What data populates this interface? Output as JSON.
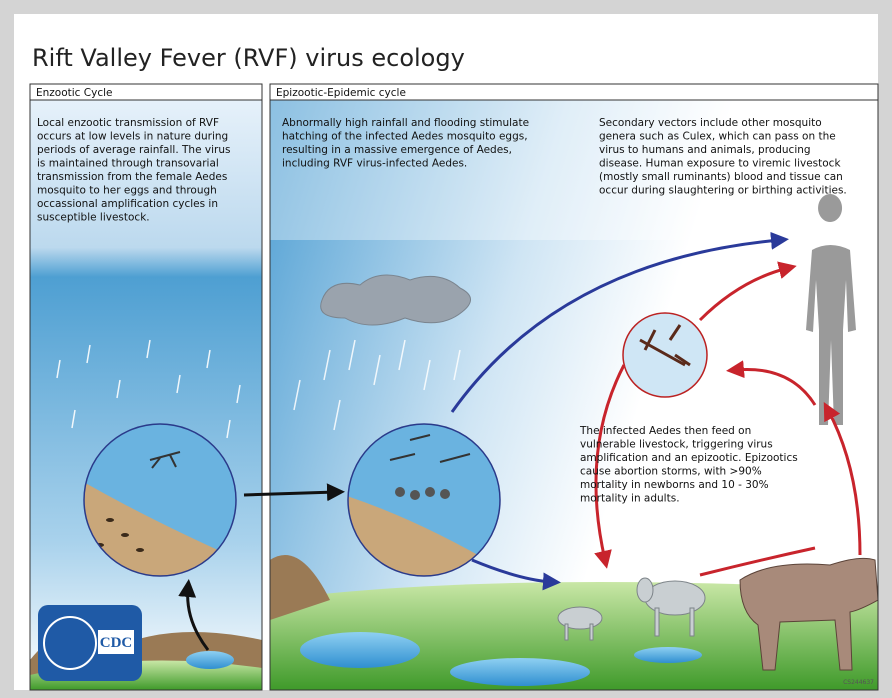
{
  "title": "Rift Valley Fever (RVF) virus ecology",
  "enzootic": {
    "label": "Enzootic Cycle",
    "lines": [
      "Local enzootic transmission of RVF",
      "occurs at low levels in nature during",
      "periods of average rainfall.  The virus",
      "is maintained through transovarial",
      "transmission from the female Aedes",
      "mosquito to her eggs and through",
      "occassional amplification cycles in",
      "susceptible livestock."
    ]
  },
  "epizootic": {
    "label": "Epizootic-Epidemic cycle",
    "flooding": [
      "Abnormally high rainfall and flooding stimulate",
      "hatching of the infected Aedes mosquito eggs,",
      "resulting in a massive emergence of Aedes,",
      "including RVF virus-infected Aedes."
    ],
    "secondary": [
      "Secondary vectors include other mosquito",
      "genera such as Culex, which can pass on the",
      "virus to humans and animals, producing",
      "disease. Human exposure to viremic livestock",
      "(mostly small ruminants) blood and tissue can",
      "occur during slaughtering or birthing activities."
    ],
    "livestock": [
      "The infected Aedes then feed on",
      "vulnerable livestock, triggering virus",
      "amplification and an epizootic. Epizootics",
      "cause abortion storms, with >90%",
      "mortality in newborns and 10 - 30%",
      "mortality in adults."
    ]
  },
  "logo": "CDC",
  "code": "CS244637"
}
